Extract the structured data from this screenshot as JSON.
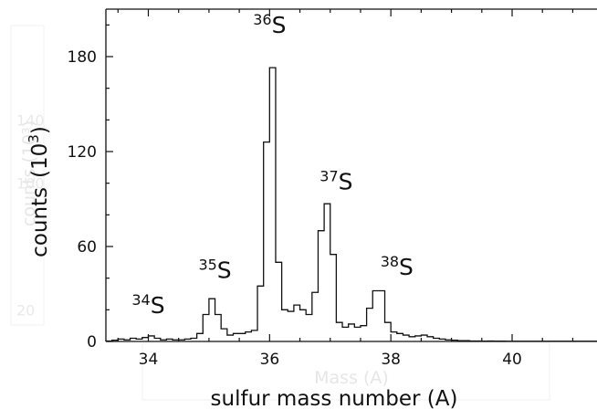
{
  "chart_data": {
    "type": "line",
    "step": true,
    "xlabel": "sulfur  mass  number (A)",
    "ylabel": "counts",
    "ylabel_unit": "(10³)",
    "xlim": [
      33.3,
      41.4
    ],
    "ylim": [
      0,
      210
    ],
    "x_ticks": [
      34,
      36,
      38,
      40
    ],
    "y_ticks": [
      0,
      60,
      120,
      180
    ],
    "grid": false,
    "peak_labels": [
      {
        "mass": "34",
        "symbol": "S",
        "x": 34.0,
        "y": 18
      },
      {
        "mass": "35",
        "symbol": "S",
        "x": 35.1,
        "y": 40
      },
      {
        "mass": "36",
        "symbol": "S",
        "x": 36.0,
        "y": 195
      },
      {
        "mass": "37",
        "symbol": "S",
        "x": 37.1,
        "y": 96
      },
      {
        "mass": "38",
        "symbol": "S",
        "x": 38.1,
        "y": 42
      }
    ],
    "bin_width": 0.1,
    "series": [
      {
        "x": [
          33.3,
          33.4,
          33.5,
          33.6,
          33.7,
          33.8,
          33.9,
          34.0,
          34.1,
          34.2,
          34.3,
          34.4,
          34.5,
          34.6,
          34.7,
          34.8,
          34.9,
          35.0,
          35.1,
          35.2,
          35.3,
          35.4,
          35.5,
          35.6,
          35.7,
          35.8,
          35.9,
          36.0,
          36.1,
          36.2,
          36.3,
          36.4,
          36.5,
          36.6,
          36.7,
          36.8,
          36.9,
          37.0,
          37.1,
          37.2,
          37.3,
          37.4,
          37.5,
          37.6,
          37.7,
          37.8,
          37.9,
          38.0,
          38.1,
          38.2,
          38.3,
          38.4,
          38.5,
          38.6,
          38.7,
          38.8,
          38.9,
          39.0,
          39.1,
          39.2,
          39.3,
          39.4,
          39.5,
          39.6,
          39.7,
          39.8,
          39.9,
          40.0,
          40.1,
          40.2,
          40.3,
          40.4,
          40.5,
          40.6,
          40.7,
          40.8,
          40.9,
          41.0,
          41.1,
          41.2,
          41.3
        ],
        "y": [
          0.3,
          0.8,
          1.5,
          1,
          2,
          1.5,
          2.5,
          3.5,
          2,
          1,
          1.5,
          1,
          1,
          1.5,
          2,
          5,
          17,
          27,
          17,
          8,
          4,
          5,
          5,
          6,
          7,
          35,
          126,
          173,
          50,
          20,
          19,
          23,
          20,
          17,
          31,
          70,
          87,
          55,
          12,
          9,
          11,
          9,
          10,
          21,
          32,
          32,
          12,
          6,
          5,
          4,
          3,
          3.5,
          4,
          3,
          2,
          1.5,
          1,
          0.8,
          0.5,
          0.5,
          0.3,
          0.3,
          0.2,
          0.3,
          0.2,
          0.2,
          0.1,
          0.1,
          0.1,
          0.1,
          0.1,
          0.1,
          0.1,
          0.1,
          0.1,
          0.1,
          0.1,
          0.1,
          0.1,
          0.1,
          0.1
        ]
      }
    ]
  },
  "background_ghost": {
    "y_ticks": [
      "20",
      "100",
      "140"
    ],
    "y_title": "counts (10³)",
    "x_title": "Mass (A)"
  }
}
